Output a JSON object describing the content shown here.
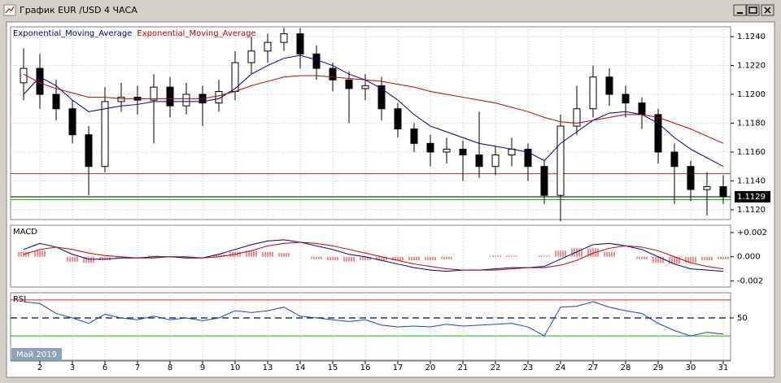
{
  "window": {
    "title": "График EUR /USD  4 ЧАСА"
  },
  "period_label": "Май 2019",
  "chart_data": [
    {
      "type": "candlestick",
      "categories": [
        null,
        "2",
        null,
        "3",
        null,
        "6",
        null,
        "7",
        null,
        "8",
        null,
        "9",
        null,
        "10",
        null,
        "13",
        null,
        "14",
        null,
        "15",
        null,
        "16",
        null,
        "17",
        null,
        "20",
        null,
        "21",
        null,
        "22",
        null,
        "23",
        null,
        "24",
        null,
        "27",
        null,
        "28",
        null,
        "29",
        null,
        "30",
        null,
        "31"
      ],
      "open": [
        1.1208,
        1.1218,
        1.12,
        1.119,
        1.1172,
        1.115,
        1.1195,
        1.1198,
        1.1196,
        1.1205,
        1.1192,
        1.12,
        1.1194,
        1.1202,
        1.1222,
        1.123,
        1.1236,
        1.1242,
        1.1228,
        1.1218,
        1.121,
        1.1204,
        1.1206,
        1.119,
        1.1176,
        1.1166,
        1.116,
        1.1162,
        1.1158,
        1.115,
        1.1158,
        1.1162,
        1.115,
        1.113,
        1.1178,
        1.119,
        1.1212,
        1.12,
        1.1194,
        1.1186,
        1.116,
        1.115,
        1.1134,
        1.1136
      ],
      "high": [
        1.1232,
        1.1228,
        1.121,
        1.1196,
        1.1178,
        1.1205,
        1.1208,
        1.1206,
        1.1214,
        1.1212,
        1.1208,
        1.1206,
        1.121,
        1.123,
        1.124,
        1.1242,
        1.1246,
        1.1246,
        1.1234,
        1.1222,
        1.1216,
        1.1214,
        1.1212,
        1.1194,
        1.118,
        1.1172,
        1.117,
        1.1168,
        1.1188,
        1.1164,
        1.117,
        1.1166,
        1.1154,
        1.1186,
        1.1206,
        1.122,
        1.1218,
        1.1206,
        1.1198,
        1.119,
        1.1166,
        1.1154,
        1.1146,
        1.1144
      ],
      "low": [
        1.1196,
        1.119,
        1.1182,
        1.1166,
        1.113,
        1.1146,
        1.1188,
        1.1186,
        1.1166,
        1.1184,
        1.1186,
        1.1178,
        1.1188,
        1.1196,
        1.1214,
        1.1222,
        1.123,
        1.1218,
        1.121,
        1.1202,
        1.118,
        1.1196,
        1.1182,
        1.117,
        1.116,
        1.115,
        1.1152,
        1.114,
        1.1142,
        1.1144,
        1.115,
        1.114,
        1.1124,
        1.1112,
        1.1172,
        1.1184,
        1.1192,
        1.1184,
        1.1176,
        1.1152,
        1.1124,
        1.1126,
        1.1116,
        1.1124
      ],
      "close": [
        1.1218,
        1.12,
        1.119,
        1.1172,
        1.115,
        1.1195,
        1.1198,
        1.1196,
        1.1205,
        1.1192,
        1.12,
        1.1194,
        1.1202,
        1.1222,
        1.123,
        1.1236,
        1.1242,
        1.1228,
        1.1218,
        1.121,
        1.1204,
        1.1206,
        1.119,
        1.1176,
        1.1166,
        1.116,
        1.1162,
        1.1158,
        1.115,
        1.1158,
        1.1162,
        1.115,
        1.113,
        1.1178,
        1.119,
        1.1212,
        1.12,
        1.1194,
        1.1186,
        1.116,
        1.115,
        1.1134,
        1.1136,
        1.1129
      ],
      "up_color": "#ffffff",
      "down_color": "#000000",
      "series": [
        {
          "name": "Exponential_Moving_Average",
          "color": "#000080",
          "values": [
            1.12,
            1.1212,
            1.1206,
            1.1196,
            1.1188,
            1.119,
            1.1192,
            1.1193,
            1.1195,
            1.1195,
            1.1195,
            1.1195,
            1.1197,
            1.1204,
            1.1214,
            1.122,
            1.1225,
            1.1227,
            1.1224,
            1.122,
            1.1214,
            1.121,
            1.1204,
            1.1196,
            1.1186,
            1.1178,
            1.1174,
            1.117,
            1.1166,
            1.1164,
            1.1162,
            1.116,
            1.1154,
            1.1166,
            1.1174,
            1.1182,
            1.1187,
            1.1188,
            1.1186,
            1.118,
            1.117,
            1.1162,
            1.1156,
            1.115
          ]
        },
        {
          "name": "Exponential_Moving_Average",
          "color": "#c00000",
          "values": [
            1.1214,
            1.1208,
            1.1204,
            1.1201,
            1.1198,
            1.1198,
            1.1197,
            1.1197,
            1.1197,
            1.1197,
            1.1197,
            1.1197,
            1.1199,
            1.1202,
            1.1206,
            1.1209,
            1.1212,
            1.1213,
            1.1213,
            1.1212,
            1.1211,
            1.121,
            1.1209,
            1.1207,
            1.1205,
            1.1202,
            1.12,
            1.1198,
            1.1196,
            1.1194,
            1.1191,
            1.1188,
            1.1184,
            1.1181,
            1.118,
            1.1182,
            1.1184,
            1.1186,
            1.1186,
            1.1184,
            1.118,
            1.1176,
            1.1171,
            1.1166
          ]
        }
      ],
      "hlines": [
        {
          "value": 1.1145,
          "color": "#e02020"
        },
        {
          "value": 1.1127,
          "color": "#00c000"
        }
      ],
      "last_price": 1.1129,
      "ylim": [
        1.11132,
        1.12468
      ],
      "yticks": [
        {
          "value": 1.124,
          "label": "1.1240"
        },
        {
          "value": 1.122,
          "label": "1.1220"
        },
        {
          "value": 1.12,
          "label": "1.1200"
        },
        {
          "value": 1.118,
          "label": "1.1180"
        },
        {
          "value": 1.116,
          "label": "1.1160"
        },
        {
          "value": 1.114,
          "label": "1.1140"
        },
        {
          "value": 1.112,
          "label": "1.1120"
        }
      ],
      "grid": true
    },
    {
      "type": "macd",
      "title": "MACD",
      "histogram": {
        "color": "#e02020",
        "values": [
          0.0004,
          0.0005,
          0.0,
          -0.0004,
          -0.0005,
          -0.0003,
          -0.0001,
          0.0,
          0.0001,
          0.0,
          -0.0001,
          0.0,
          0.0002,
          0.0004,
          0.0005,
          0.0004,
          0.0003,
          0.0,
          -0.0002,
          -0.0003,
          -0.0004,
          -0.0003,
          -0.0003,
          -0.0003,
          -0.0003,
          -0.0003,
          -0.0002,
          0.0,
          0.0,
          0.0001,
          0.0001,
          0.0,
          0.0001,
          0.0005,
          0.0007,
          0.0007,
          0.0004,
          0.0,
          -0.0002,
          -0.0005,
          -0.0006,
          -0.0005,
          -0.0003,
          -0.0002
        ]
      },
      "series": [
        {
          "color": "#000080",
          "values": [
            0.0006,
            0.0011,
            0.0008,
            0.0002,
            -0.0002,
            -0.0002,
            -0.0001,
            -0.0001,
            0.0,
            0.0,
            -0.0001,
            -0.0001,
            0.0002,
            0.0006,
            0.001,
            0.0013,
            0.0014,
            0.0012,
            0.0009,
            0.0006,
            0.0002,
            0.0,
            -0.0003,
            -0.0006,
            -0.0009,
            -0.0011,
            -0.0012,
            -0.0011,
            -0.0011,
            -0.001,
            -0.0009,
            -0.0009,
            -0.0008,
            -0.0002,
            0.0004,
            0.001,
            0.0011,
            0.0009,
            0.0006,
            0.0,
            -0.0006,
            -0.001,
            -0.0011,
            -0.0012
          ]
        },
        {
          "color": "#c00000",
          "values": [
            0.0002,
            0.0006,
            0.0008,
            0.0006,
            0.0003,
            0.0001,
            0.0,
            -0.0001,
            -0.0001,
            0.0,
            0.0,
            -0.0001,
            0.0,
            0.0002,
            0.0005,
            0.0009,
            0.0011,
            0.0012,
            0.0011,
            0.0009,
            0.0006,
            0.0003,
            0.0,
            -0.0003,
            -0.0006,
            -0.0008,
            -0.001,
            -0.0011,
            -0.0011,
            -0.0011,
            -0.001,
            -0.0009,
            -0.0009,
            -0.0007,
            -0.0003,
            0.0003,
            0.0007,
            0.0009,
            0.0008,
            0.0005,
            0.0,
            -0.0005,
            -0.0008,
            -0.001
          ]
        }
      ],
      "ylim": [
        -0.0025,
        0.0026
      ],
      "yticks": [
        {
          "value": 0.002,
          "label": "+0.002"
        },
        {
          "value": 0,
          "label": "0.000"
        },
        {
          "value": -0.002,
          "label": "-0.002"
        }
      ]
    },
    {
      "type": "rsi",
      "title": "RSI",
      "series": [
        {
          "color": "#2040c0",
          "values": [
            68,
            66,
            55,
            50,
            44,
            54,
            50,
            48,
            52,
            48,
            50,
            47,
            50,
            58,
            56,
            58,
            62,
            52,
            50,
            48,
            46,
            48,
            42,
            40,
            41,
            40,
            43,
            41,
            42,
            43,
            44,
            40,
            30,
            62,
            63,
            68,
            62,
            58,
            55,
            44,
            36,
            30,
            34,
            32
          ]
        }
      ],
      "levels": [
        {
          "value": 70,
          "color": "#e02020"
        },
        {
          "value": 50,
          "color": "#000080"
        },
        {
          "value": 30,
          "color": "#00c000"
        }
      ],
      "ylim": [
        3,
        78
      ],
      "yticks": [
        50
      ]
    }
  ]
}
